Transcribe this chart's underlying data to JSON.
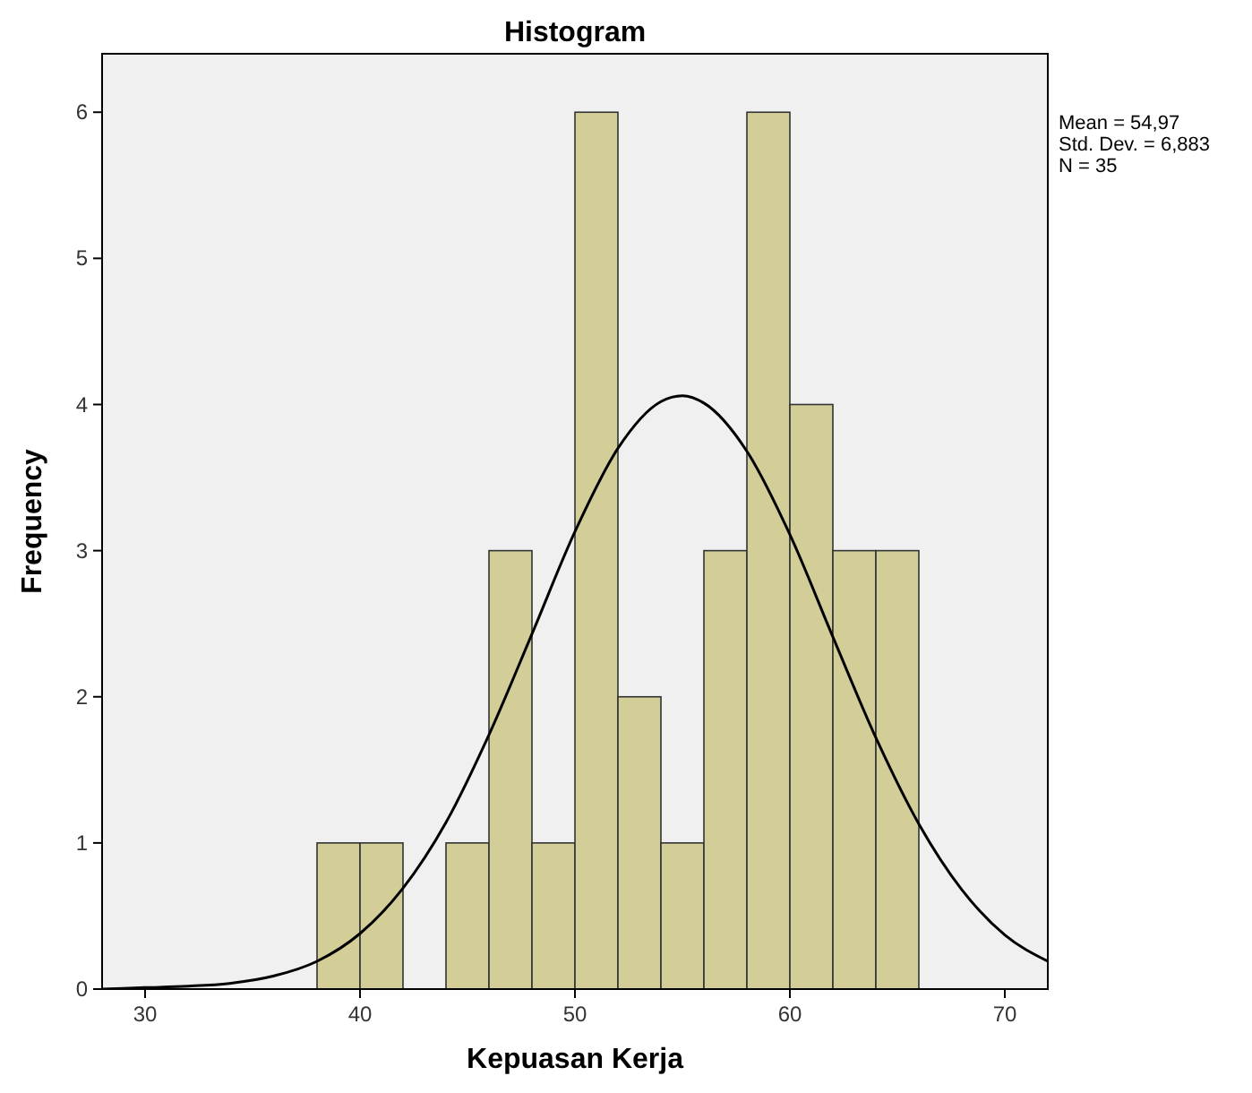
{
  "chart_data": {
    "type": "histogram",
    "title": "Histogram",
    "xlabel": "Kepuasan Kerja",
    "ylabel": "Frequency",
    "bins": [
      38,
      40,
      42,
      44,
      46,
      48,
      50,
      52,
      54,
      56,
      58,
      60,
      62,
      64,
      66
    ],
    "values": [
      1,
      1,
      0,
      1,
      3,
      1,
      6,
      2,
      1,
      3,
      6,
      4,
      3,
      3
    ],
    "color": "#d3ce97",
    "series": [
      {
        "type": "line",
        "color": "#000000",
        "x": [
          28,
          30,
          32,
          34,
          36,
          38,
          40,
          42,
          44,
          46,
          48,
          50,
          52,
          54,
          55,
          56,
          58,
          60,
          62,
          64,
          66,
          68,
          70,
          72
        ],
        "values": [
          0,
          0.01,
          0.02,
          0.04,
          0.09,
          0.19,
          0.38,
          0.69,
          1.14,
          1.74,
          2.43,
          3.13,
          3.7,
          4.02,
          4.06,
          4.01,
          3.68,
          3.11,
          2.41,
          1.72,
          1.13,
          0.68,
          0.37,
          0.19
        ]
      }
    ],
    "xlim": [
      28,
      72
    ],
    "xticks": [
      30,
      40,
      50,
      60,
      70
    ],
    "ylim": [
      0,
      6.4
    ],
    "yticks": [
      0,
      1,
      2,
      3,
      4,
      5,
      6
    ],
    "annotations": [
      "Mean = 54,97",
      "Std. Dev. = 6,883",
      "N = 35"
    ],
    "grid": false
  }
}
